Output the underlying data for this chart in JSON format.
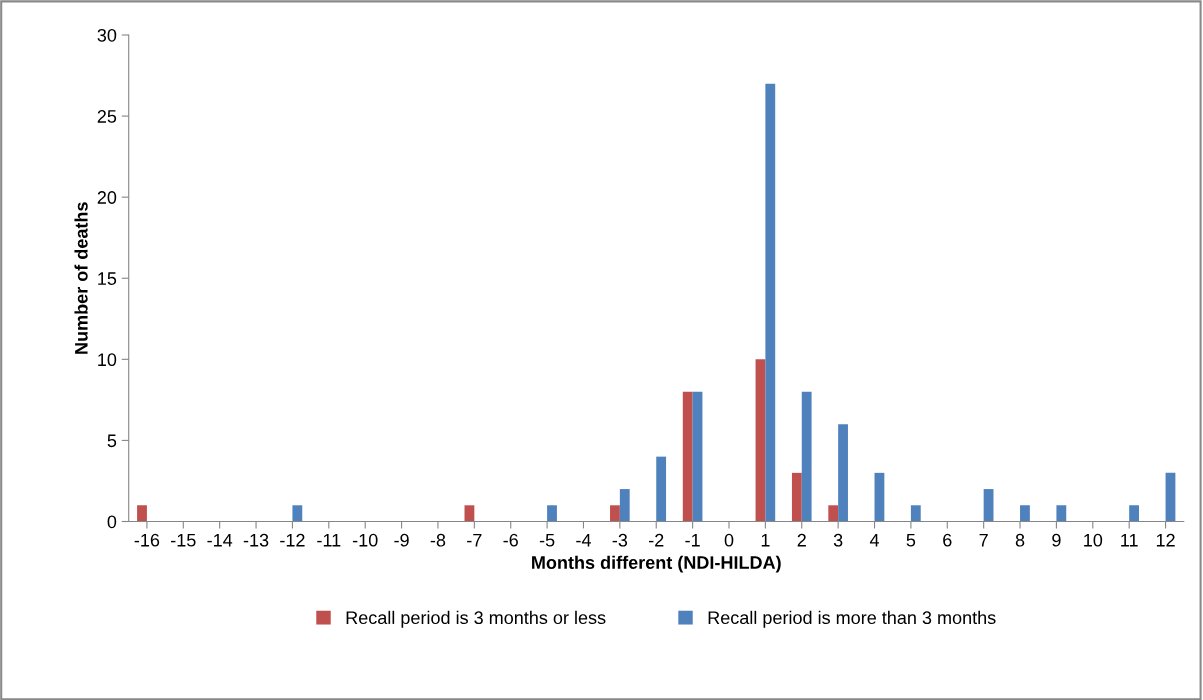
{
  "chart_data": {
    "type": "bar",
    "xlabel": "Months different (NDI-HILDA)",
    "ylabel": "Number of deaths",
    "categories": [
      "-16",
      "-15",
      "-14",
      "-13",
      "-12",
      "-11",
      "-10",
      "-9",
      "-8",
      "-7",
      "-6",
      "-5",
      "-4",
      "-3",
      "-2",
      "-1",
      "0",
      "1",
      "2",
      "3",
      "4",
      "5",
      "6",
      "7",
      "8",
      "9",
      "10",
      "11",
      "12"
    ],
    "series": [
      {
        "name": "Recall period is 3 months or less",
        "color": "#c0504d",
        "values": [
          1,
          0,
          0,
          0,
          0,
          0,
          0,
          0,
          0,
          1,
          0,
          0,
          0,
          1,
          0,
          8,
          0,
          10,
          3,
          1,
          0,
          0,
          0,
          0,
          0,
          0,
          0,
          0,
          0
        ]
      },
      {
        "name": "Recall period is more than 3 months",
        "color": "#4f81bd",
        "values": [
          0,
          0,
          0,
          0,
          1,
          0,
          0,
          0,
          0,
          0,
          0,
          1,
          0,
          2,
          4,
          8,
          0,
          27,
          8,
          6,
          3,
          1,
          0,
          2,
          1,
          1,
          0,
          1,
          3
        ]
      }
    ],
    "ylim": [
      0,
      30
    ],
    "yticks": [
      0,
      5,
      10,
      15,
      20,
      25,
      30
    ],
    "grid": false,
    "legend": "bottom"
  }
}
